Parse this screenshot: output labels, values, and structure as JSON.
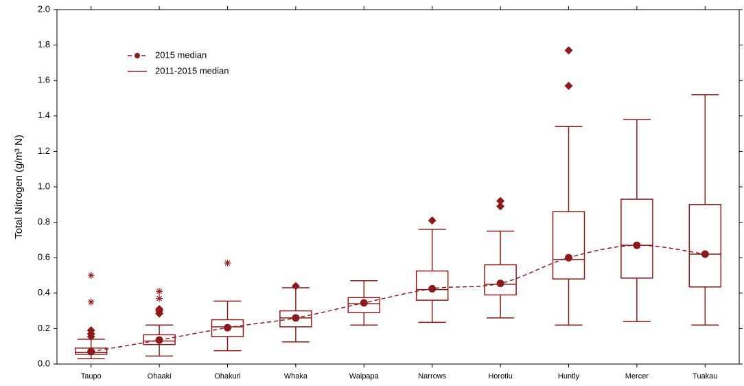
{
  "chart_data": {
    "type": "box",
    "y_label": "Total Nitrogen (g/m³ N)",
    "categories": [
      "Taupo",
      "Ohaaki",
      "Ohakuri",
      "Whaka",
      "Waipapa",
      "Narrows",
      "Horotiu",
      "Huntly",
      "Mercer",
      "Tuakau"
    ],
    "ylim": [
      0,
      2
    ],
    "yticks": [
      {
        "value": 0,
        "label": "0.0"
      },
      0.2,
      0.4,
      0.6,
      0.8,
      {
        "value": 1,
        "label": "1.0"
      },
      1.2,
      1.4,
      1.6,
      1.8,
      {
        "value": 2,
        "label": "2.0"
      }
    ],
    "color": "#8b1a1a",
    "boxes": {
      "name": "2011-2015 median",
      "low": [
        0.03,
        0.045,
        0.075,
        0.125,
        0.22,
        0.235,
        0.26,
        0.22,
        0.24,
        0.22
      ],
      "q1": [
        0.055,
        0.11,
        0.155,
        0.21,
        0.29,
        0.36,
        0.39,
        0.48,
        0.485,
        0.435
      ],
      "median": [
        0.065,
        0.13,
        0.21,
        0.26,
        0.34,
        0.42,
        0.45,
        0.59,
        0.67,
        0.62
      ],
      "q3": [
        0.09,
        0.165,
        0.25,
        0.3,
        0.375,
        0.525,
        0.56,
        0.86,
        0.93,
        0.9
      ],
      "high": [
        0.14,
        0.22,
        0.355,
        0.43,
        0.47,
        0.76,
        0.75,
        1.34,
        1.38,
        1.52
      ]
    },
    "outliers": [
      [
        0.19,
        0.17,
        0.155
      ],
      [
        0.31,
        0.3,
        0.285
      ],
      [],
      [
        0.44
      ],
      [],
      [
        0.81
      ],
      [
        0.92,
        0.89
      ],
      [
        1.57,
        1.77
      ],
      [],
      []
    ],
    "extremes": [
      [
        0.35,
        0.5
      ],
      [
        0.37,
        0.41
      ],
      [
        0.57
      ],
      [],
      [],
      [],
      [],
      [],
      [],
      []
    ],
    "series": [
      {
        "name": "2015 median",
        "values": [
          0.07,
          0.135,
          0.205,
          0.26,
          0.345,
          0.425,
          0.455,
          0.6,
          0.67,
          0.62
        ]
      }
    ]
  }
}
